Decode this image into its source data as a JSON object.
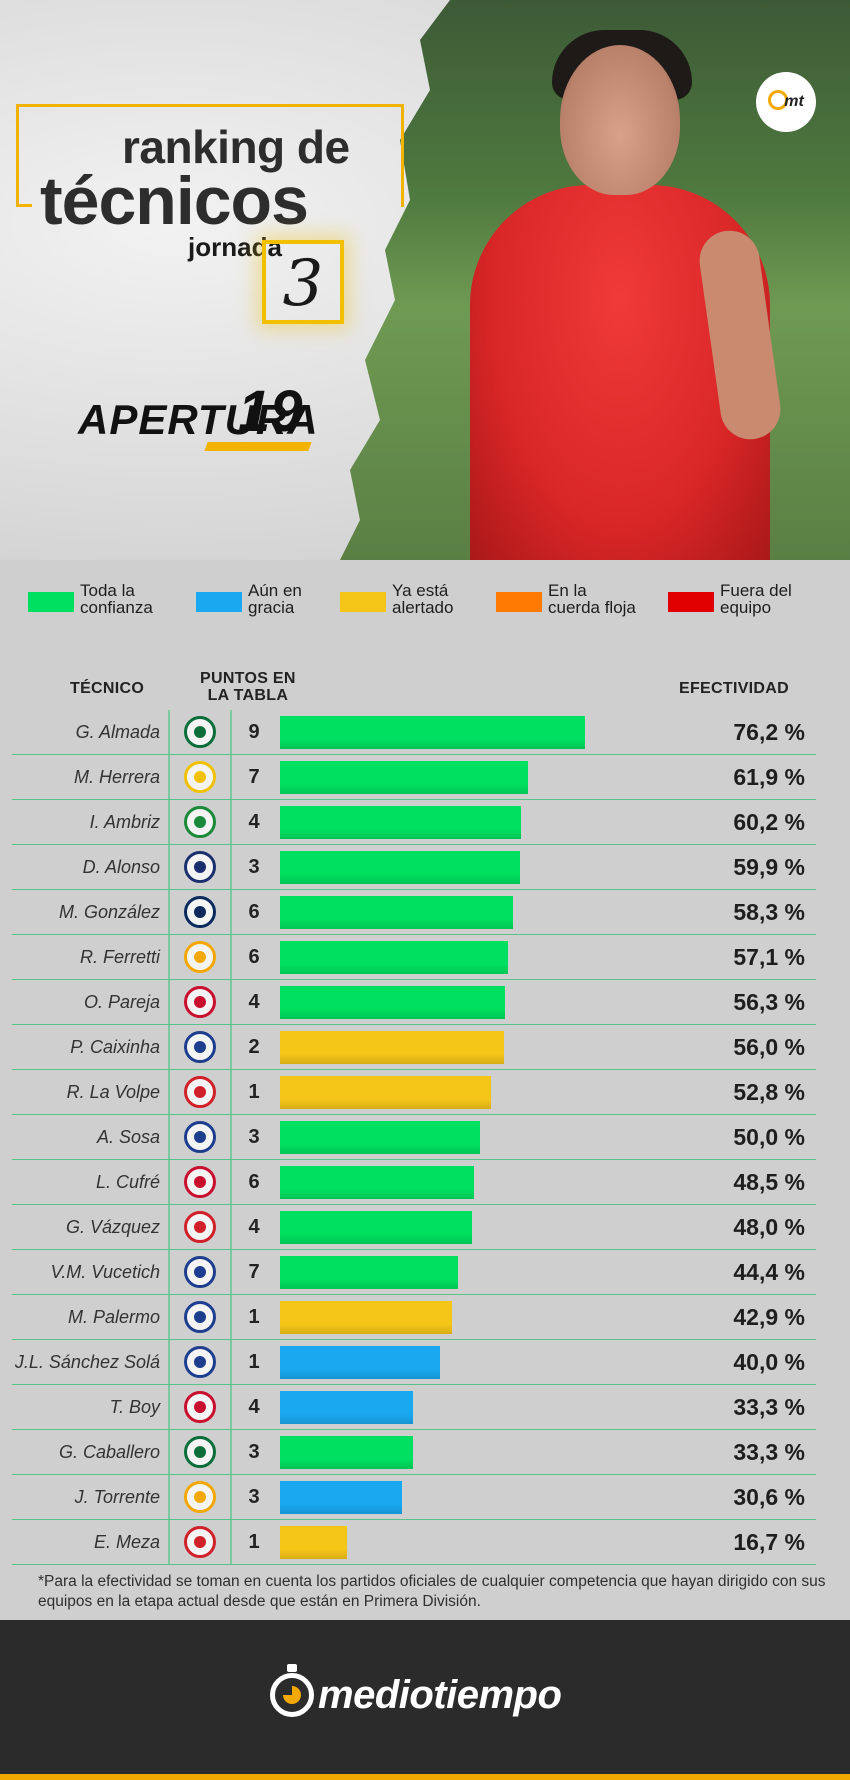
{
  "header": {
    "title_line1": "ranking de",
    "title_line2": "técnicos",
    "jornada_label": "jornada",
    "jornada_number": "3",
    "tournament_word": "APERTURA",
    "tournament_year": "19",
    "badge_text": "mt"
  },
  "legend": [
    {
      "label": "Toda la\nconfianza",
      "color": "#00e060"
    },
    {
      "label": "Aún en\ngracia",
      "color": "#1aa8f0"
    },
    {
      "label": "Ya está\nalertado",
      "color": "#f5c518"
    },
    {
      "label": "En la\ncuerda floja",
      "color": "#ff7a00"
    },
    {
      "label": "Fuera del\nequipo",
      "color": "#e00000"
    }
  ],
  "columns": {
    "coach": "TÉCNICO",
    "points_line1": "PUNTOS EN",
    "points_line2": "LA TABLA",
    "efficiency": "EFECTIVIDAD"
  },
  "chart_data": {
    "type": "bar",
    "orientation": "horizontal",
    "xlim": [
      0,
      100
    ],
    "categories": [
      "G. Almada",
      "M. Herrera",
      "I. Ambriz",
      "D. Alonso",
      "M. González",
      "R. Ferretti",
      "O. Pareja",
      "P. Caixinha",
      "R. La Volpe",
      "A. Sosa",
      "L. Cufré",
      "G. Vázquez",
      "V.M. Vucetich",
      "M. Palermo",
      "J.L. Sánchez Solá",
      "T. Boy",
      "G. Caballero",
      "J. Torrente",
      "E. Meza"
    ],
    "values": [
      76.2,
      61.9,
      60.2,
      59.9,
      58.3,
      57.1,
      56.3,
      56.0,
      52.8,
      50.0,
      48.5,
      48.0,
      44.4,
      42.9,
      40.0,
      33.3,
      33.3,
      30.6,
      16.7
    ],
    "value_labels": [
      "76,2 %",
      "61,9 %",
      "60,2 %",
      "59,9 %",
      "58,3 %",
      "57,1 %",
      "56,3 %",
      "56,0 %",
      "52,8 %",
      "50,0 %",
      "48,5 %",
      "48,0 %",
      "44,4 %",
      "42,9 %",
      "40,0 %",
      "33,3 %",
      "33,3 %",
      "30,6 %",
      "16,7 %"
    ],
    "points": [
      "9",
      "7",
      "4",
      "3",
      "6",
      "6",
      "4",
      "2",
      "1",
      "3",
      "6",
      "4",
      "7",
      "1",
      "1",
      "4",
      "3",
      "3",
      "1"
    ],
    "status": [
      "Toda la confianza",
      "Toda la confianza",
      "Toda la confianza",
      "Toda la confianza",
      "Toda la confianza",
      "Toda la confianza",
      "Toda la confianza",
      "Ya está alertado",
      "Ya está alertado",
      "Toda la confianza",
      "Toda la confianza",
      "Toda la confianza",
      "Toda la confianza",
      "Ya está alertado",
      "Aún en gracia",
      "Aún en gracia",
      "Toda la confianza",
      "Aún en gracia",
      "Ya está alertado"
    ],
    "bar_colors": [
      "#00e060",
      "#00e060",
      "#00e060",
      "#00e060",
      "#00e060",
      "#00e060",
      "#00e060",
      "#f5c518",
      "#f5c518",
      "#00e060",
      "#00e060",
      "#00e060",
      "#00e060",
      "#f5c518",
      "#1aa8f0",
      "#1aa8f0",
      "#00e060",
      "#1aa8f0",
      "#f5c518"
    ],
    "crest_colors": [
      "#0a6e3a",
      "#f2c200",
      "#1a8a3a",
      "#1a2f6e",
      "#0a2a5e",
      "#f2a800",
      "#c8102e",
      "#1d3e8f",
      "#d0202a",
      "#1d3e8f",
      "#c8102e",
      "#d0202a",
      "#1d3e8f",
      "#1d3e8f",
      "#1d3e8f",
      "#c8102e",
      "#0a6e3a",
      "#f2a800",
      "#d0202a"
    ]
  },
  "footnote": "*Para la efectividad se toman en cuenta los partidos oficiales de cualquier competencia que hayan dirigido con sus equipos en la etapa actual desde que están en Primera División.",
  "footer": {
    "brand": "mediotiempo"
  }
}
